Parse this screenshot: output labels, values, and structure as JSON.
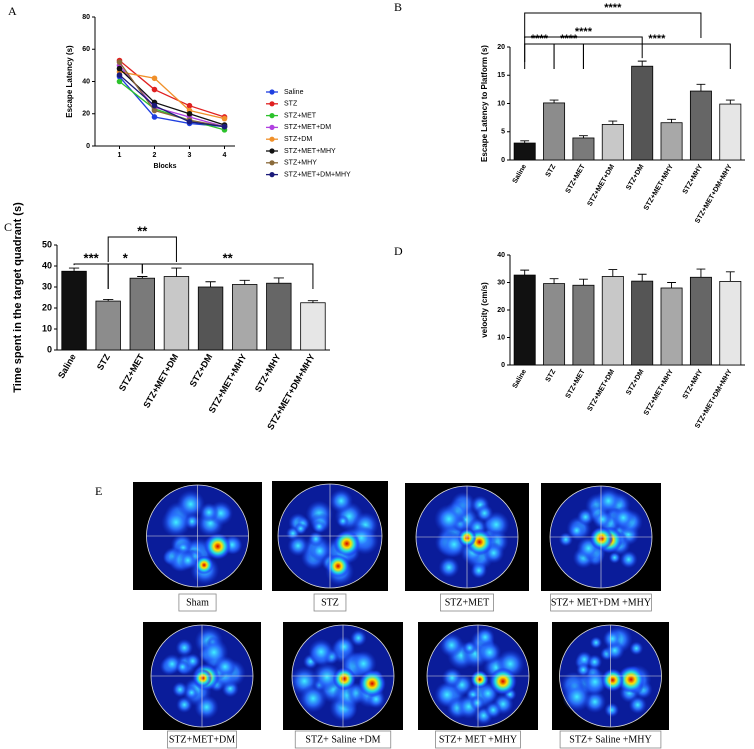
{
  "chart_data": [
    {
      "panel": "A",
      "type": "line",
      "x_label": "Blocks",
      "y_label": "Escape Latency (s)",
      "x": [
        1,
        2,
        3,
        4
      ],
      "xlim": [
        0.3,
        4.3
      ],
      "xticks": [
        1,
        2,
        3,
        4
      ],
      "ylim": [
        0,
        80
      ],
      "yticks": [
        0,
        20,
        40,
        60,
        80
      ],
      "series": [
        {
          "name": "Saline",
          "color": "#1f3fe0",
          "values": [
            43,
            18,
            14,
            12
          ]
        },
        {
          "name": "STZ",
          "color": "#e02020",
          "values": [
            53,
            35,
            25,
            18
          ]
        },
        {
          "name": "STZ+MET",
          "color": "#2cc22c",
          "values": [
            40,
            23,
            16,
            10
          ]
        },
        {
          "name": "STZ+MET+DM",
          "color": "#b040e0",
          "values": [
            50,
            24,
            18,
            12
          ]
        },
        {
          "name": "STZ+DM",
          "color": "#f0902a",
          "values": [
            46,
            42,
            22,
            17
          ]
        },
        {
          "name": "STZ+MET+MHY",
          "color": "#111111",
          "values": [
            48,
            27,
            20,
            13
          ]
        },
        {
          "name": "STZ+MHY",
          "color": "#8a6a3a",
          "values": [
            52,
            22,
            16,
            12
          ]
        },
        {
          "name": "STZ+MET+DM+MHY",
          "color": "#1a1a7a",
          "values": [
            44,
            25,
            15,
            12
          ]
        }
      ]
    },
    {
      "panel": "B",
      "type": "bar",
      "y_label": "Escape Latency to Platform (s)",
      "categories": [
        "Saline",
        "STZ",
        "STZ+MET",
        "STZ+MET+DM",
        "STZ+DM",
        "STZ+MET+MHY",
        "STZ+MHY",
        "STZ+MET+DM+MHY"
      ],
      "values": [
        3.0,
        10.1,
        3.9,
        6.3,
        16.6,
        6.6,
        12.2,
        9.9
      ],
      "errors": [
        0.4,
        0.5,
        0.4,
        0.6,
        0.9,
        0.6,
        1.2,
        0.7
      ],
      "colors": [
        "#111111",
        "#8c8c8c",
        "#7a7a7a",
        "#c8c8c8",
        "#555555",
        "#a8a8a8",
        "#666666",
        "#e6e6e6"
      ],
      "ylim": [
        0,
        20
      ],
      "yticks": [
        0,
        5,
        10,
        15,
        20
      ],
      "annotations": [
        {
          "text": "****",
          "between": [
            "Saline",
            "STZ"
          ]
        },
        {
          "text": "****",
          "between": [
            "STZ",
            "STZ+MET"
          ]
        },
        {
          "text": "****",
          "between": [
            "Saline",
            "STZ+DM"
          ]
        },
        {
          "text": "****",
          "between": [
            "Saline",
            "STZ+MHY"
          ]
        },
        {
          "text": "****",
          "between": [
            "STZ+MET",
            "STZ+MET+DM+MHY"
          ]
        }
      ]
    },
    {
      "panel": "C",
      "type": "bar",
      "y_label": "Time spent in the target quadrant (s)",
      "categories": [
        "Saline",
        "STZ",
        "STZ+MET",
        "STZ+MET+DM",
        "STZ+DM",
        "STZ+MET+MHY",
        "STZ+MHY",
        "STZ+MET+DM+MHY"
      ],
      "values": [
        37.5,
        23.3,
        34.2,
        35.0,
        30.0,
        31.2,
        31.8,
        22.5
      ],
      "errors": [
        1.5,
        0.8,
        0.8,
        4.0,
        2.5,
        2.0,
        2.5,
        1.0
      ],
      "colors": [
        "#111111",
        "#8c8c8c",
        "#7a7a7a",
        "#c8c8c8",
        "#555555",
        "#a8a8a8",
        "#666666",
        "#e6e6e6"
      ],
      "ylim": [
        0,
        50
      ],
      "yticks": [
        0,
        10,
        20,
        30,
        40,
        50
      ],
      "annotations": [
        {
          "text": "***",
          "between": [
            "Saline",
            "STZ"
          ]
        },
        {
          "text": "*",
          "between": [
            "STZ",
            "STZ+MET"
          ]
        },
        {
          "text": "**",
          "between": [
            "STZ",
            "STZ+MET+DM"
          ]
        },
        {
          "text": "**",
          "between": [
            "STZ+MET",
            "STZ+MET+DM+MHY"
          ]
        }
      ]
    },
    {
      "panel": "D",
      "type": "bar",
      "y_label": "velocity (cm/s)",
      "categories": [
        "Saline",
        "STZ",
        "STZ+MET",
        "STZ+MET+DM",
        "STZ+DM",
        "STZ+MET+MHY",
        "STZ+MHY",
        "STZ+MET+DM+MHY"
      ],
      "values": [
        32.7,
        29.6,
        29.0,
        32.2,
        30.5,
        28.0,
        31.9,
        30.4
      ],
      "errors": [
        1.8,
        1.8,
        2.2,
        2.5,
        2.5,
        2.0,
        3.0,
        3.5
      ],
      "colors": [
        "#111111",
        "#8c8c8c",
        "#7a7a7a",
        "#c8c8c8",
        "#555555",
        "#a8a8a8",
        "#666666",
        "#e6e6e6"
      ],
      "ylim": [
        0,
        40
      ],
      "yticks": [
        0,
        10,
        20,
        30,
        40
      ]
    }
  ],
  "panel_e": {
    "label": "E",
    "images": [
      "Sham",
      "STZ",
      "STZ+MET",
      "STZ+ MET+DM +MHY",
      "STZ+MET+DM",
      "STZ+ Saline +DM",
      "STZ+ MET +MHY",
      "STZ+ Saline +MHY"
    ]
  }
}
